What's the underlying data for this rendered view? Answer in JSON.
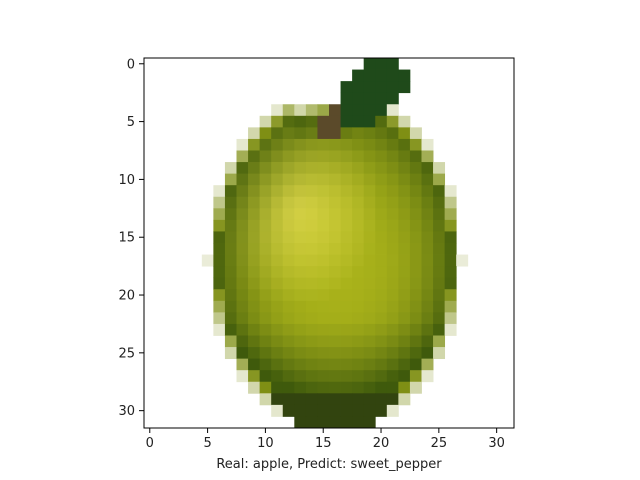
{
  "figure": {
    "x_axis_label": "Real: apple, Predict: sweet_pepper",
    "x_ticks": [
      "0",
      "5",
      "10",
      "15",
      "20",
      "25",
      "30"
    ],
    "y_ticks": [
      "0",
      "5",
      "10",
      "15",
      "20",
      "25",
      "30"
    ],
    "image_grid": {
      "columns": 32,
      "rows": 32
    },
    "image_subject": "green apple with dark green leaf, pixelated 32x32 image",
    "colors": {
      "background": "#ffffff",
      "apple_light": "#e0da4a",
      "apple_mid": "#a9b21a",
      "apple_dark": "#3f5a0c",
      "leaf": "#1f4a1a",
      "stem": "#5b4a2a"
    }
  }
}
